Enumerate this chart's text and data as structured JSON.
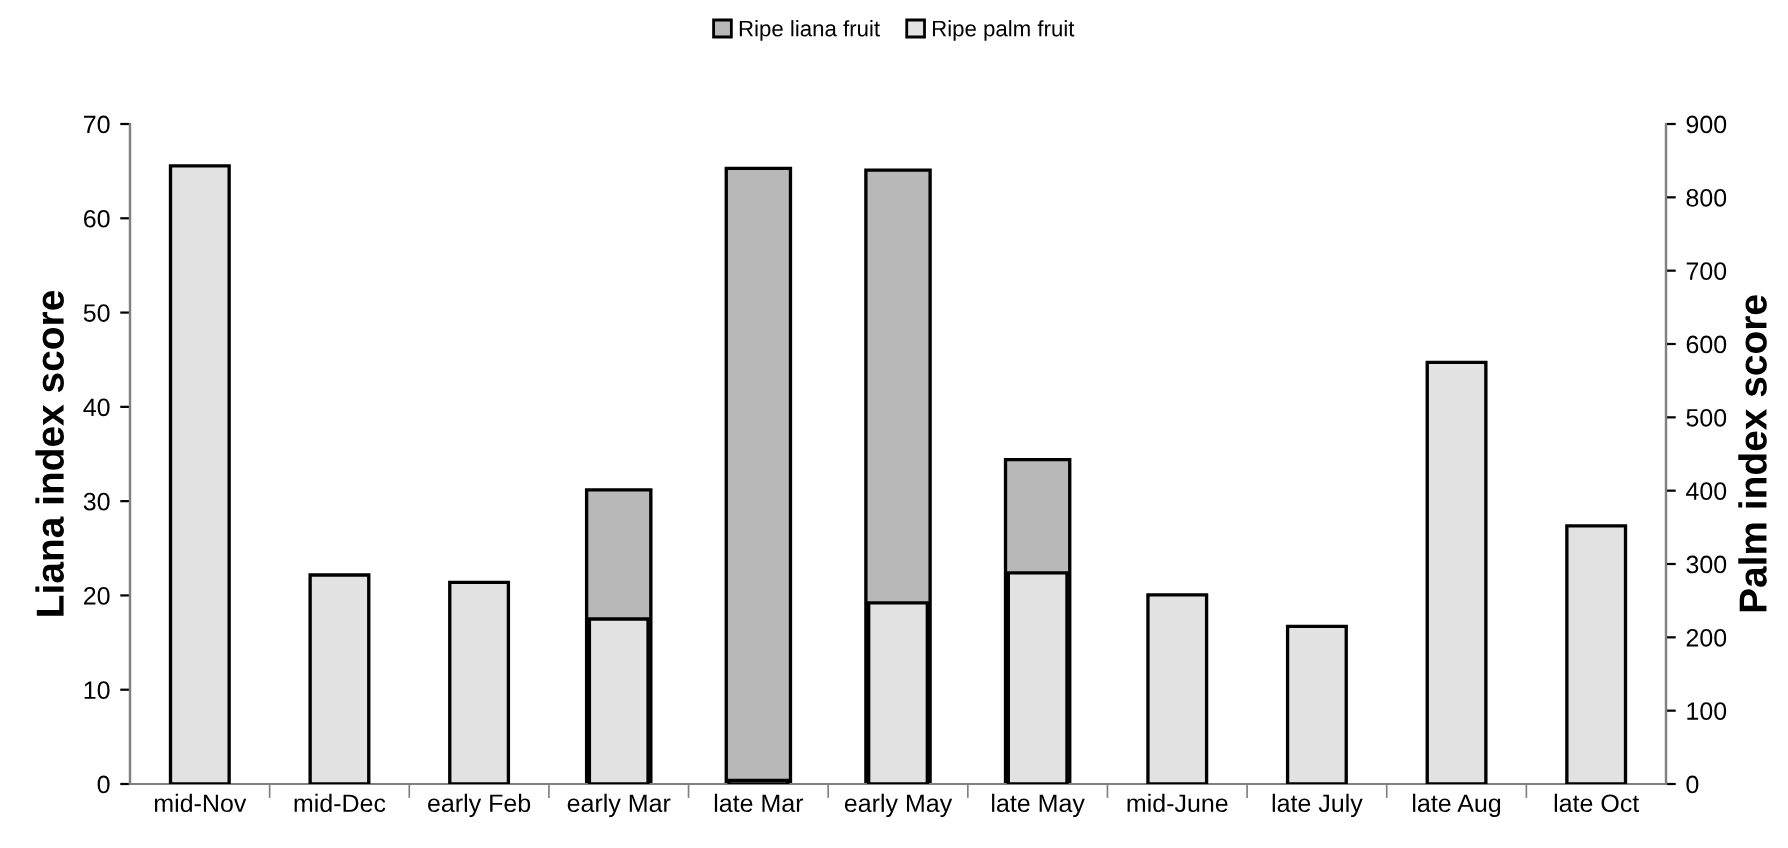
{
  "chart_data": {
    "type": "bar",
    "ylabel": "Liana index score",
    "y2label": "Palm index score",
    "categories": [
      "mid-Nov",
      "mid-Dec",
      "early Feb",
      "early Mar",
      "late Mar",
      "early May",
      "late May",
      "mid-June",
      "late July",
      "late Aug",
      "late Oct"
    ],
    "series": [
      {
        "name": "Ripe liana fruit",
        "color": "#b8b8b8",
        "values": [
          null,
          null,
          null,
          31.2,
          65.3,
          65.1,
          34.4,
          null,
          null,
          null,
          null
        ]
      },
      {
        "name": "Ripe palm fruit",
        "color": "#e2e2e2",
        "axis": "y2",
        "values": [
          843,
          285,
          275,
          225,
          5,
          247,
          288,
          258,
          215,
          575,
          352
        ]
      }
    ],
    "ylim": [
      0,
      70
    ],
    "yticks": [
      0,
      10,
      20,
      30,
      40,
      50,
      60,
      70
    ],
    "y2lim": [
      0,
      900
    ],
    "y2ticks": [
      0,
      100,
      200,
      300,
      400,
      500,
      600,
      700,
      800,
      900
    ],
    "grid": false,
    "legend": "top"
  }
}
